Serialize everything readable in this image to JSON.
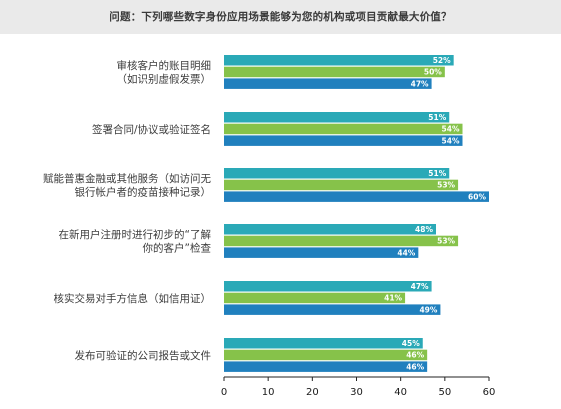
{
  "title": "问题：下列哪些数字身份应用场景能够为您的机构或项目贡献最大价值？",
  "chart_data": {
    "type": "bar",
    "orientation": "horizontal",
    "title": "问题：下列哪些数字身份应用场景能够为您的机构或项目贡献最大价值？",
    "xlabel": "",
    "ylabel": "",
    "xlim": [
      0,
      60
    ],
    "x_ticks": [
      "0",
      "10",
      "20",
      "30",
      "40",
      "50",
      "60"
    ],
    "value_suffix": "%",
    "grid": false,
    "legend": "none",
    "categories": [
      [
        "审核客户的账目明细",
        "（如识别虚假发票）"
      ],
      [
        "签署合同/协议或验证签名"
      ],
      [
        "赋能普惠金融或其他服务（如访问无",
        "银行帐户者的疫苗接种记录）"
      ],
      [
        "在新用户注册时进行初步的“了解",
        "你的客户”检查"
      ],
      [
        "核实交易对手方信息（如信用证）"
      ],
      [
        "发布可验证的公司报告或文件"
      ]
    ],
    "series": [
      {
        "color": "#2aa9b7",
        "values": [
          52,
          51,
          51,
          48,
          47,
          45
        ]
      },
      {
        "color": "#86c24a",
        "values": [
          50,
          54,
          53,
          53,
          41,
          46
        ]
      },
      {
        "color": "#2080be",
        "values": [
          47,
          54,
          60,
          44,
          49,
          46
        ]
      }
    ]
  }
}
